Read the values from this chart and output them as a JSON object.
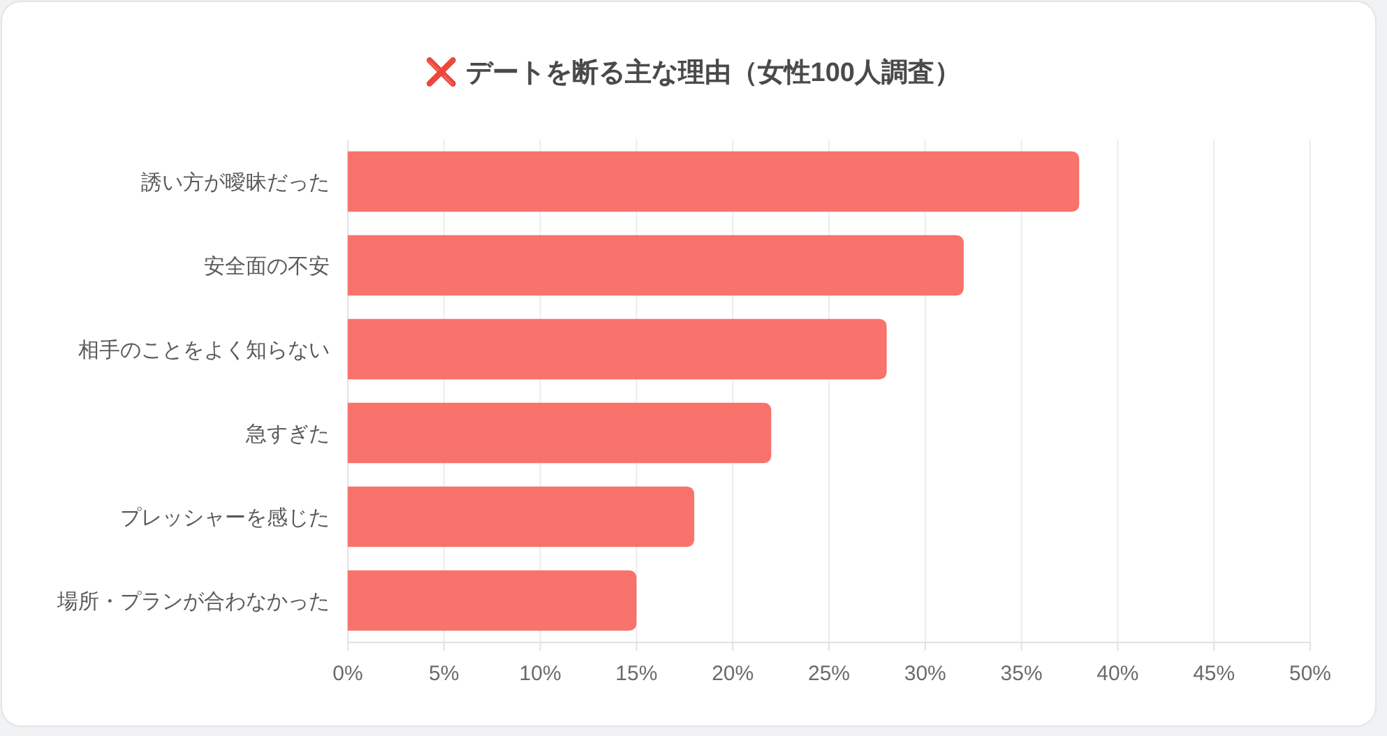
{
  "chart_data": {
    "type": "bar",
    "orientation": "horizontal",
    "title": "❌ デートを断る主な理由（女性100人調査）",
    "categories": [
      "誘い方が曖昧だった",
      "安全面の不安",
      "相手のことをよく知らない",
      "急すぎた",
      "プレッシャーを感じた",
      "場所・プランが合わなかった"
    ],
    "values": [
      38,
      32,
      28,
      22,
      18,
      15
    ],
    "color": "#f7736b",
    "xlim": [
      0,
      50
    ],
    "xticks": [
      {
        "value": 0,
        "label": "0%"
      },
      {
        "value": 5,
        "label": "5%"
      },
      {
        "value": 10,
        "label": "10%"
      },
      {
        "value": 15,
        "label": "15%"
      },
      {
        "value": 20,
        "label": "20%"
      },
      {
        "value": 25,
        "label": "25%"
      },
      {
        "value": 30,
        "label": "30%"
      },
      {
        "value": 35,
        "label": "35%"
      },
      {
        "value": 40,
        "label": "40%"
      },
      {
        "value": 45,
        "label": "45%"
      },
      {
        "value": 50,
        "label": "50%"
      }
    ],
    "grid": "x"
  }
}
